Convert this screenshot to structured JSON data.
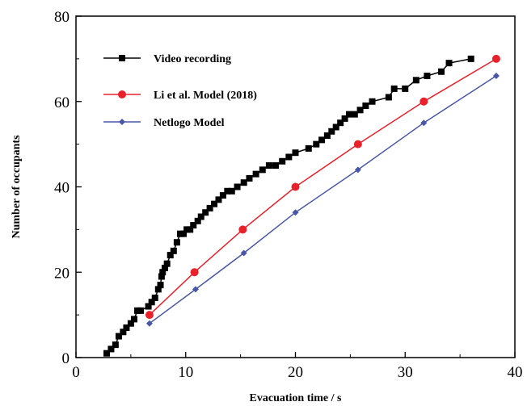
{
  "chart_data": {
    "type": "line",
    "xlabel": "Evacuation time / s",
    "ylabel": "Number of occupants",
    "xlim": [
      0,
      40
    ],
    "ylim": [
      0,
      80
    ],
    "xticks": [
      "0",
      "10",
      "20",
      "30",
      "40"
    ],
    "yticks": [
      "0",
      "20",
      "40",
      "60",
      "80"
    ],
    "grid": false,
    "legend_position": "top-left",
    "series": [
      {
        "name": "Video recording",
        "color": "#000000",
        "marker": "square",
        "x": [
          2.8,
          3.2,
          3.6,
          3.9,
          4.3,
          4.6,
          5.0,
          5.3,
          5.6,
          5.9,
          6.6,
          6.9,
          7.2,
          7.5,
          7.7,
          7.8,
          7.9,
          8.1,
          8.3,
          8.6,
          8.9,
          9.2,
          9.5,
          9.8,
          10.1,
          10.4,
          10.7,
          11.1,
          11.4,
          11.8,
          12.2,
          12.6,
          13.0,
          13.4,
          13.8,
          14.2,
          14.7,
          15.3,
          15.8,
          16.4,
          17.0,
          17.6,
          18.2,
          18.8,
          19.4,
          20.0,
          21.2,
          21.9,
          22.4,
          22.9,
          23.3,
          23.7,
          24.1,
          24.5,
          24.9,
          25.4,
          25.9,
          26.4,
          27.0,
          28.5,
          29.0,
          30.0,
          31.0,
          32.0,
          33.3,
          34.0,
          36.0
        ],
        "y": [
          1,
          2,
          3,
          5,
          6,
          7,
          8,
          9,
          11,
          11,
          12,
          13,
          14,
          16,
          17,
          19,
          20,
          21,
          22,
          24,
          25,
          27,
          29,
          29,
          30,
          30,
          31,
          32,
          33,
          34,
          35,
          36,
          37,
          38,
          39,
          39,
          40,
          41,
          42,
          43,
          44,
          45,
          45,
          46,
          47,
          48,
          49,
          50,
          51,
          52,
          53,
          54,
          55,
          56,
          57,
          57,
          58,
          59,
          60,
          61,
          63,
          63,
          65,
          66,
          67,
          69,
          70
        ]
      },
      {
        "name": "Li et al. Model (2018)",
        "color": "#e8212a",
        "marker": "circle",
        "x": [
          6.7,
          10.8,
          15.2,
          20.0,
          25.7,
          31.7,
          38.3
        ],
        "y": [
          10,
          20,
          30,
          40,
          50,
          60,
          70
        ]
      },
      {
        "name": "Netlogo Model",
        "color": "#4a57a8",
        "marker": "diamond",
        "x": [
          6.7,
          10.9,
          15.3,
          20.0,
          25.7,
          31.7,
          38.3
        ],
        "y": [
          8,
          16,
          24.5,
          34,
          44,
          55,
          66
        ]
      }
    ]
  }
}
